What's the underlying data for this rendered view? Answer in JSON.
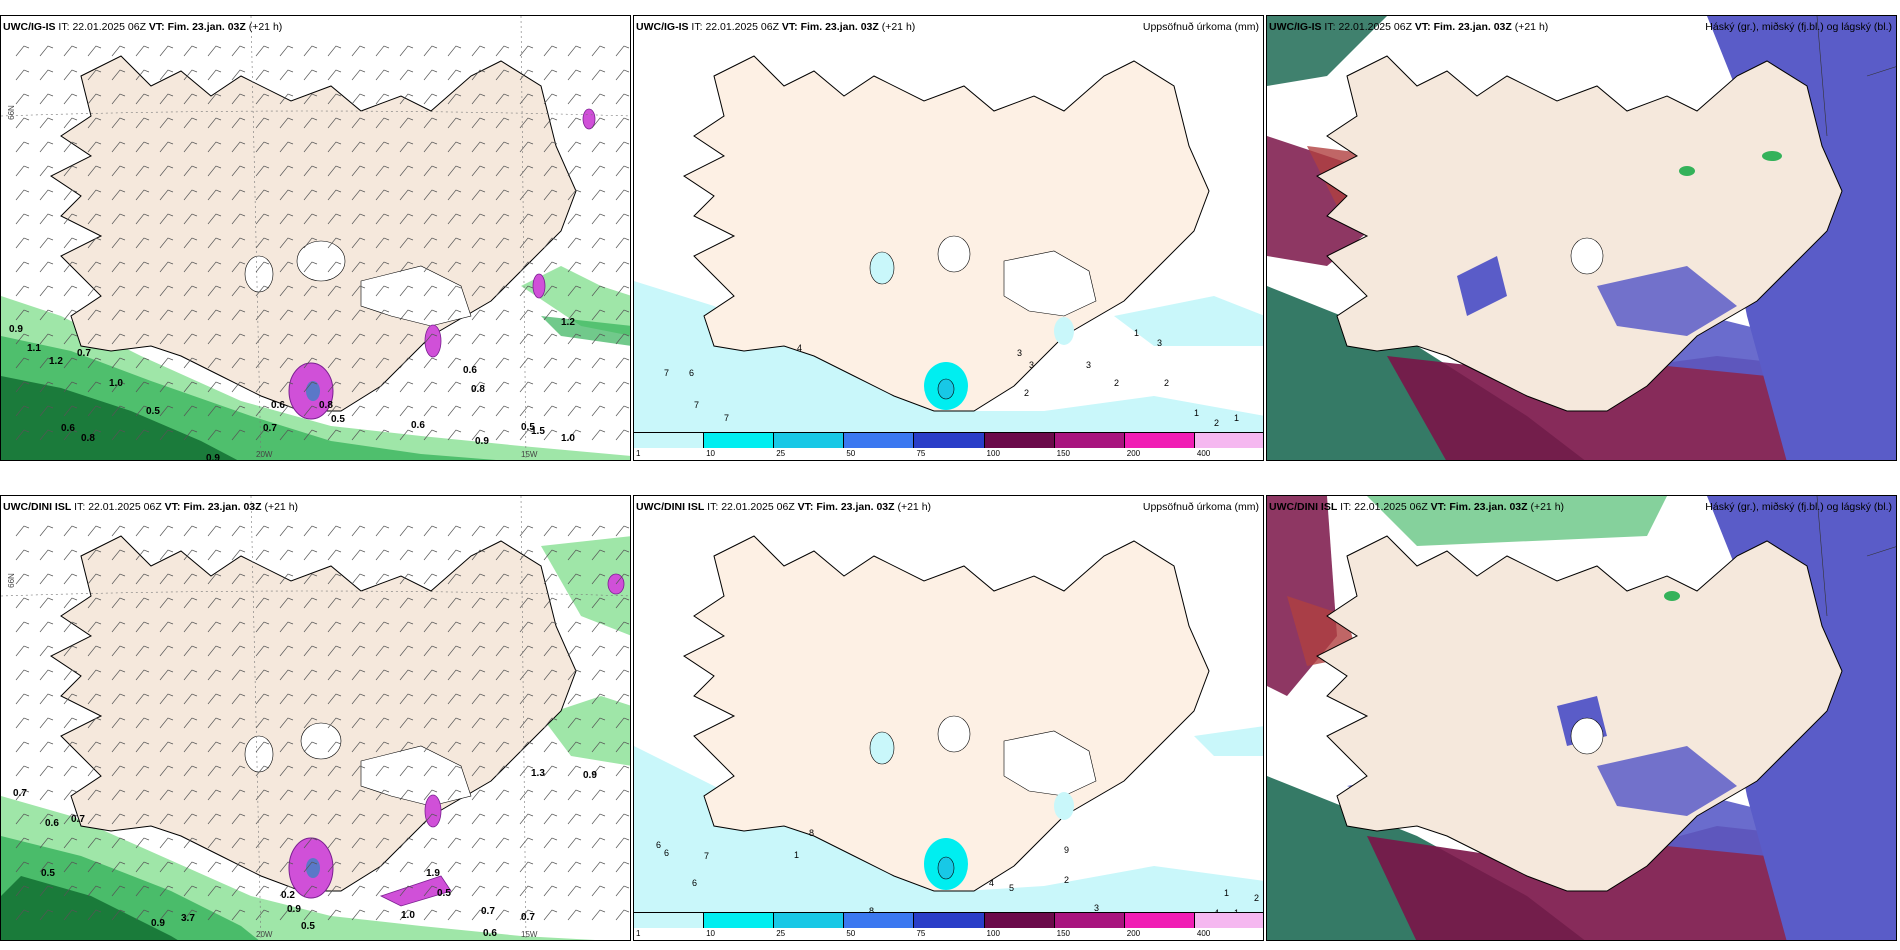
{
  "rows": [
    {
      "model": "UWC/IG-IS",
      "it_label": "IT:",
      "it_value": "22.01.2025 06Z",
      "vt_label": "VT:",
      "vt_value": "Fim. 23.jan. 03Z",
      "lead": "(+21 h)",
      "wind_values": [
        "0.9",
        "1.1",
        "1.2",
        "0.7",
        "1.0",
        "0.5",
        "0.6",
        "0.8",
        "0.9",
        "0.7",
        "0.5",
        "0.6",
        "0.9",
        "1.5",
        "1.0",
        "0.6",
        "0.8",
        "0.6",
        "0.5",
        "0.8",
        "1.2"
      ],
      "precip_values": [
        "7",
        "6",
        "7",
        "7",
        "4",
        "3",
        "2",
        "3",
        "3",
        "2",
        "2",
        "1",
        "2",
        "1",
        "3",
        "1"
      ]
    },
    {
      "model": "UWC/DINI ISL",
      "it_label": "IT:",
      "it_value": "22.01.2025 06Z",
      "vt_label": "VT:",
      "vt_value": "Fim. 23.jan. 03Z",
      "lead": "(+21 h)",
      "wind_values": [
        "0.7",
        "0.6",
        "0.7",
        "0.5",
        "0.9",
        "3.7",
        "0.2",
        "0.9",
        "0.5",
        "1.0",
        "0.7",
        "0.7",
        "0.6",
        "1.3",
        "0.9",
        "1.9",
        "0.5"
      ],
      "precip_values": [
        "6",
        "6",
        "7",
        "6",
        "8",
        "1",
        "8",
        "1",
        "4",
        "5",
        "9",
        "2",
        "3",
        "4",
        "4",
        "1",
        "1",
        "2"
      ]
    }
  ],
  "precip_title": "Uppsöfnuð úrkoma (mm)",
  "cloud_title": "Háský (gr.), miðský (fj.bl.) og lágský (bl.)",
  "grid_labels": {
    "lat_66": "66N",
    "lon_20w": "20W",
    "lon_15w": "15W"
  },
  "colorbar": {
    "labels": [
      "1",
      "10",
      "25",
      "50",
      "75",
      "100",
      "150",
      "200",
      "400"
    ],
    "colors": [
      "#c9f7fa",
      "#00eef0",
      "#18c8e6",
      "#3b78f0",
      "#2a3ec8",
      "#6b0a4a",
      "#a8147e",
      "#f01eb4",
      "#f5b8f0"
    ]
  },
  "colors": {
    "land": "#f5e8dc",
    "land_precip": "#fdf0e4",
    "green_light": "#9fe6a8",
    "green_mid": "#34b25a",
    "green_dark": "#0e6a2e",
    "magenta": "#d050d8",
    "high_cloud": "#5a5cc8",
    "mid_cloud": "#7a1448",
    "low_cloud": "#1f6b55"
  }
}
